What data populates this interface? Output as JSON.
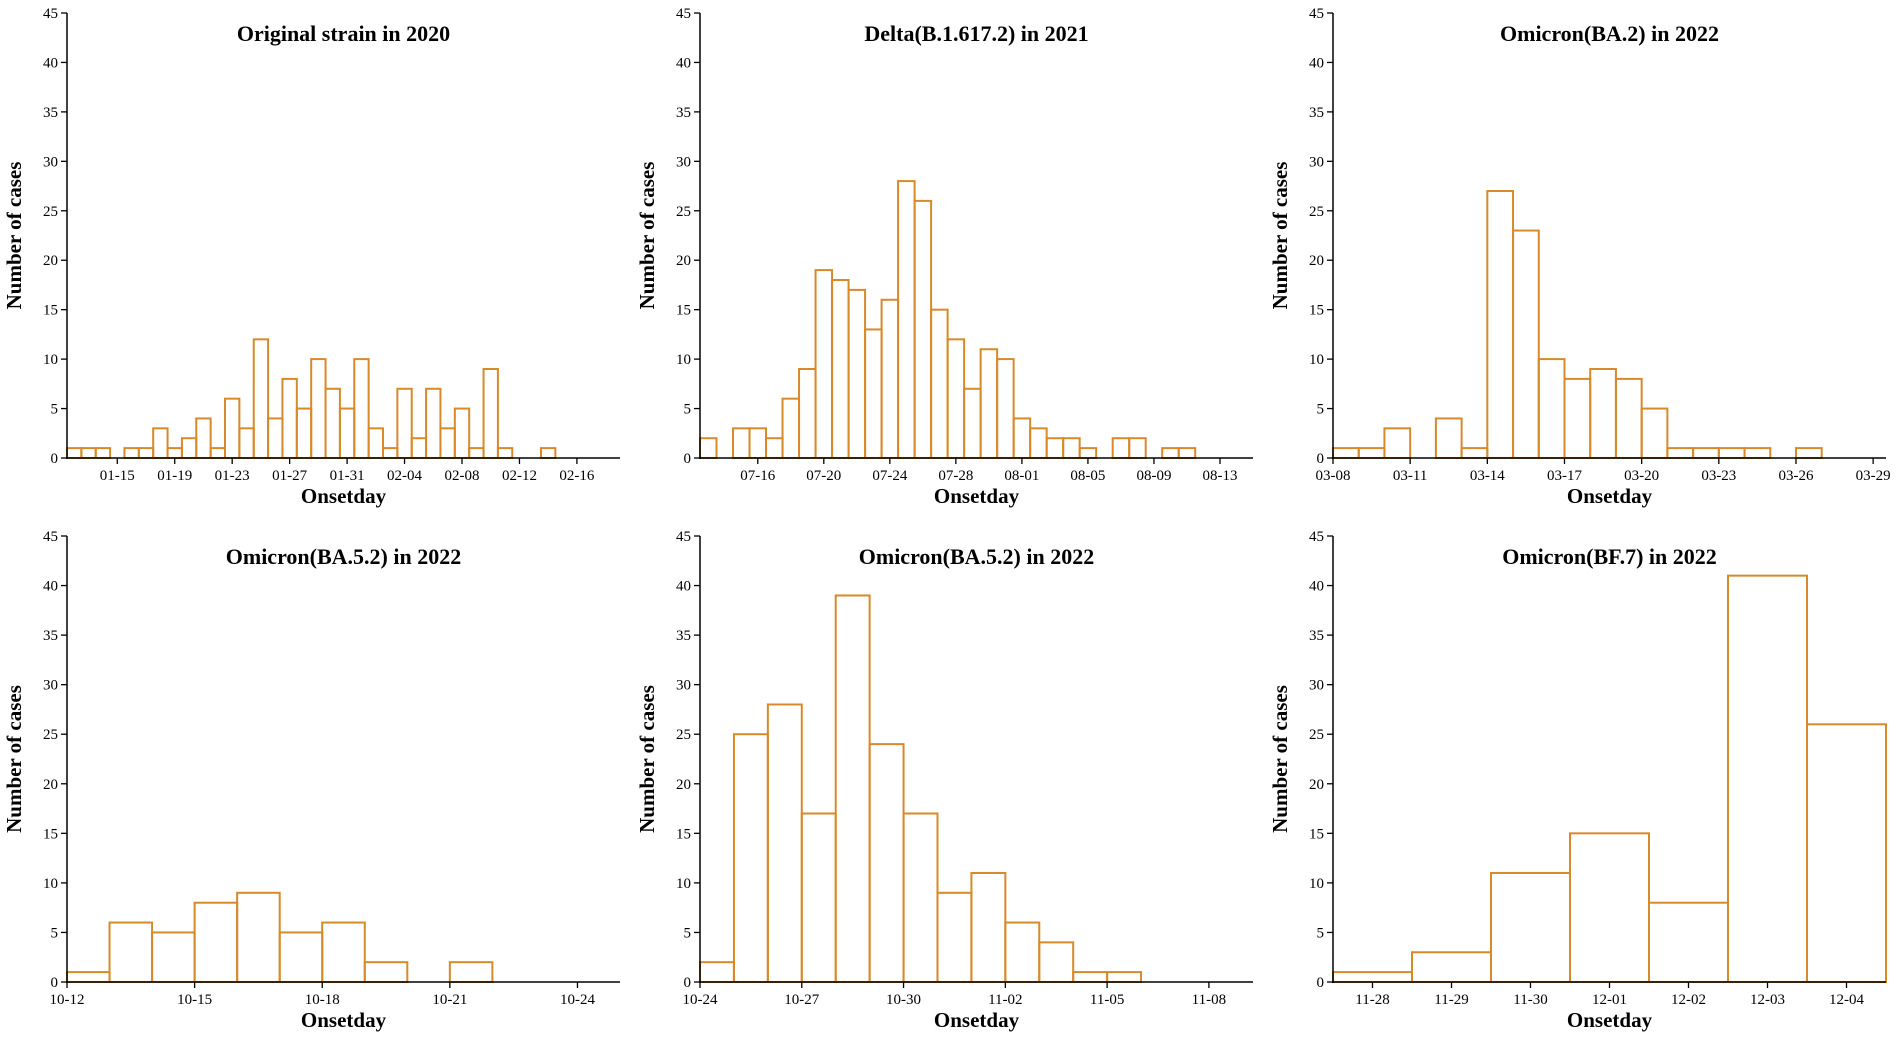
{
  "colors": {
    "bar": "#d8892a",
    "axis": "#000000",
    "background": "#ffffff"
  },
  "chart_data": [
    {
      "type": "bar",
      "title": "Original strain in 2020",
      "xlabel": "Onsetday",
      "ylabel": "Number of cases",
      "ylim": [
        0,
        45
      ],
      "yticks": [
        0,
        5,
        10,
        15,
        20,
        25,
        30,
        35,
        40,
        45
      ],
      "x_start": 0,
      "x_end": 38.5,
      "xtick_labels": [
        {
          "x": 3.5,
          "label": "01-15"
        },
        {
          "x": 7.5,
          "label": "01-19"
        },
        {
          "x": 11.5,
          "label": "01-23"
        },
        {
          "x": 15.5,
          "label": "01-27"
        },
        {
          "x": 19.5,
          "label": "01-31"
        },
        {
          "x": 23.5,
          "label": "02-04"
        },
        {
          "x": 27.5,
          "label": "02-08"
        },
        {
          "x": 31.5,
          "label": "02-12"
        },
        {
          "x": 35.5,
          "label": "02-16"
        }
      ],
      "values": [
        1,
        1,
        1,
        0,
        1,
        1,
        3,
        1,
        2,
        4,
        1,
        6,
        3,
        12,
        4,
        8,
        5,
        10,
        7,
        5,
        10,
        3,
        1,
        7,
        2,
        7,
        3,
        5,
        1,
        9,
        1,
        0,
        0,
        1,
        0,
        0,
        0,
        0
      ]
    },
    {
      "type": "bar",
      "title": "Delta(B.1.617.2) in 2021",
      "xlabel": "Onsetday",
      "ylabel": "Number of cases",
      "ylim": [
        0,
        45
      ],
      "yticks": [
        0,
        5,
        10,
        15,
        20,
        25,
        30,
        35,
        40,
        45
      ],
      "x_start": 0,
      "x_end": 33.5,
      "xtick_labels": [
        {
          "x": 3.5,
          "label": "07-16"
        },
        {
          "x": 7.5,
          "label": "07-20"
        },
        {
          "x": 11.5,
          "label": "07-24"
        },
        {
          "x": 15.5,
          "label": "07-28"
        },
        {
          "x": 19.5,
          "label": "08-01"
        },
        {
          "x": 23.5,
          "label": "08-05"
        },
        {
          "x": 27.5,
          "label": "08-09"
        },
        {
          "x": 31.5,
          "label": "08-13"
        }
      ],
      "values": [
        2,
        0,
        3,
        3,
        2,
        6,
        9,
        19,
        18,
        17,
        13,
        16,
        28,
        26,
        15,
        12,
        7,
        11,
        10,
        4,
        3,
        2,
        2,
        1,
        0,
        2,
        2,
        0,
        1,
        1,
        0,
        0,
        0
      ]
    },
    {
      "type": "bar",
      "title": "Omicron(BA.2) in 2022",
      "xlabel": "Onsetday",
      "ylabel": "Number of cases",
      "ylim": [
        0,
        45
      ],
      "yticks": [
        0,
        5,
        10,
        15,
        20,
        25,
        30,
        35,
        40,
        45
      ],
      "x_start": 0,
      "x_end": 21.5,
      "xtick_labels": [
        {
          "x": 0,
          "label": "03-08"
        },
        {
          "x": 3,
          "label": "03-11"
        },
        {
          "x": 6,
          "label": "03-14"
        },
        {
          "x": 9,
          "label": "03-17"
        },
        {
          "x": 12,
          "label": "03-20"
        },
        {
          "x": 15,
          "label": "03-23"
        },
        {
          "x": 18,
          "label": "03-26"
        },
        {
          "x": 21,
          "label": "03-29"
        }
      ],
      "values": [
        1,
        1,
        3,
        0,
        4,
        1,
        27,
        23,
        10,
        8,
        9,
        8,
        5,
        1,
        1,
        1,
        1,
        0,
        1,
        0,
        0
      ]
    },
    {
      "type": "bar",
      "title": "Omicron(BA.5.2) in 2022",
      "xlabel": "Onsetday",
      "ylabel": "Number of cases",
      "ylim": [
        0,
        45
      ],
      "yticks": [
        0,
        5,
        10,
        15,
        20,
        25,
        30,
        35,
        40,
        45
      ],
      "x_start": 0,
      "x_end": 13,
      "xtick_labels": [
        {
          "x": 0,
          "label": "10-12"
        },
        {
          "x": 3,
          "label": "10-15"
        },
        {
          "x": 6,
          "label": "10-18"
        },
        {
          "x": 9,
          "label": "10-21"
        },
        {
          "x": 12,
          "label": "10-24"
        }
      ],
      "values": [
        1,
        6,
        5,
        8,
        9,
        5,
        6,
        2,
        0,
        2,
        0,
        0
      ]
    },
    {
      "type": "bar",
      "title": "Omicron(BA.5.2) in 2022",
      "xlabel": "Onsetday",
      "ylabel": "Number of cases",
      "ylim": [
        0,
        45
      ],
      "yticks": [
        0,
        5,
        10,
        15,
        20,
        25,
        30,
        35,
        40,
        45
      ],
      "x_start": 0,
      "x_end": 16.3,
      "xtick_labels": [
        {
          "x": 0,
          "label": "10-24"
        },
        {
          "x": 3,
          "label": "10-27"
        },
        {
          "x": 6,
          "label": "10-30"
        },
        {
          "x": 9,
          "label": "11-02"
        },
        {
          "x": 12,
          "label": "11-05"
        },
        {
          "x": 15,
          "label": "11-08"
        }
      ],
      "values": [
        2,
        25,
        28,
        17,
        39,
        24,
        17,
        9,
        11,
        6,
        4,
        1,
        1,
        0,
        0,
        0
      ]
    },
    {
      "type": "bar",
      "title": "Omicron(BF.7) in 2022",
      "xlabel": "Onsetday",
      "ylabel": "Number of cases",
      "ylim": [
        0,
        45
      ],
      "yticks": [
        0,
        5,
        10,
        15,
        20,
        25,
        30,
        35,
        40,
        45
      ],
      "x_start": 0,
      "x_end": 7,
      "xtick_labels": [
        {
          "x": 0.5,
          "label": "11-28"
        },
        {
          "x": 1.5,
          "label": "11-29"
        },
        {
          "x": 2.5,
          "label": "11-30"
        },
        {
          "x": 3.5,
          "label": "12-01"
        },
        {
          "x": 4.5,
          "label": "12-02"
        },
        {
          "x": 5.5,
          "label": "12-03"
        },
        {
          "x": 6.5,
          "label": "12-04"
        }
      ],
      "values": [
        1,
        3,
        11,
        15,
        8,
        41,
        26
      ]
    }
  ]
}
